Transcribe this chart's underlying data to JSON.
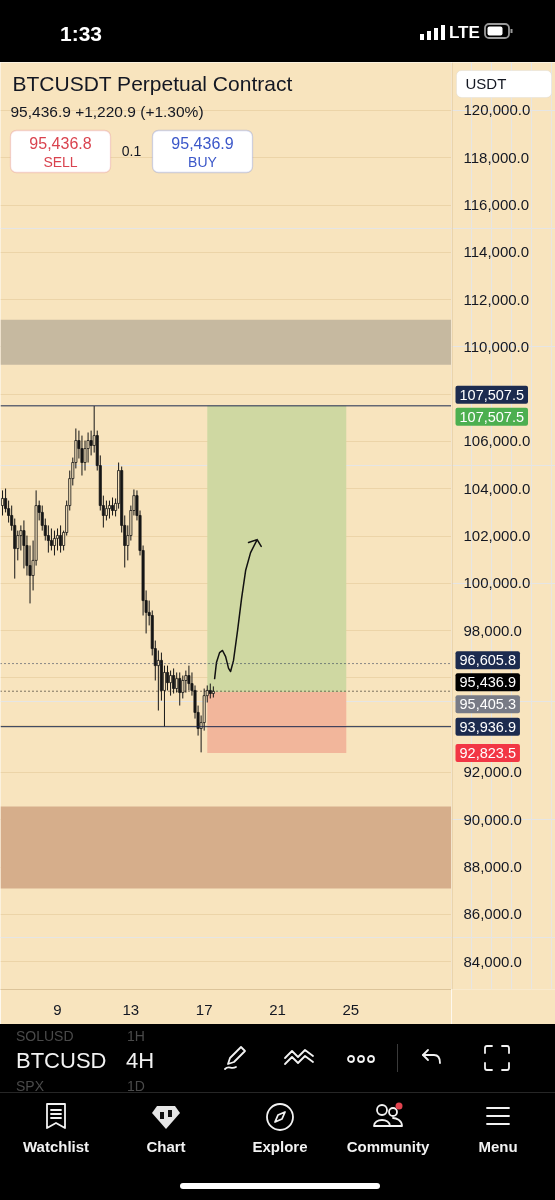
{
  "chart_data": {
    "type": "candlestick",
    "title": "BTCUSDT Perpetual Contract",
    "subtitle": "95,436.9 +1,220.9 (+1.30%)",
    "x": [
      6.0,
      6.167,
      6.333,
      6.5,
      6.667,
      6.833,
      7.0,
      7.167,
      7.333,
      7.5,
      7.667,
      7.833,
      8.0,
      8.167,
      8.333,
      8.5,
      8.667,
      8.833,
      9.0,
      9.167,
      9.333,
      9.5,
      9.667,
      9.833,
      10.0,
      10.167,
      10.333,
      10.5,
      10.667,
      10.833,
      11.0,
      11.167,
      11.333,
      11.5,
      11.667,
      11.833,
      12.0,
      12.167,
      12.333,
      12.5,
      12.667,
      12.833,
      13.0,
      13.167,
      13.333,
      13.5,
      13.667,
      13.833,
      14.0,
      14.167,
      14.333,
      14.5,
      14.667,
      14.833,
      15.0,
      15.167,
      15.333,
      15.5,
      15.667,
      15.833,
      16.0,
      16.167,
      16.333,
      16.5,
      16.667,
      16.833,
      17.0,
      17.167,
      17.333,
      17.5
    ],
    "ohlc": [
      [
        103290,
        103930,
        102870,
        103590
      ],
      [
        103590,
        104010,
        103000,
        103160
      ],
      [
        103160,
        103500,
        102570,
        102870
      ],
      [
        102870,
        103290,
        102230,
        102450
      ],
      [
        102450,
        102740,
        100200,
        101470
      ],
      [
        101470,
        102230,
        100970,
        102020
      ],
      [
        102020,
        102450,
        101390,
        102230
      ],
      [
        102230,
        102660,
        100630,
        101600
      ],
      [
        101600,
        102020,
        100330,
        100750
      ],
      [
        100750,
        101600,
        99150,
        100330
      ],
      [
        100330,
        101810,
        99700,
        100970
      ],
      [
        100970,
        103930,
        100750,
        103290
      ],
      [
        103290,
        103500,
        102660,
        103000
      ],
      [
        103000,
        103290,
        102230,
        102450
      ],
      [
        102450,
        102740,
        101810,
        102020
      ],
      [
        102020,
        102450,
        101300,
        101810
      ],
      [
        101810,
        102320,
        101390,
        101600
      ],
      [
        101600,
        102230,
        101180,
        101900
      ],
      [
        101900,
        102320,
        101390,
        102020
      ],
      [
        102020,
        102450,
        101300,
        101600
      ],
      [
        101600,
        102230,
        101390,
        102150
      ],
      [
        102150,
        103500,
        102020,
        103290
      ],
      [
        103290,
        104770,
        103080,
        104430
      ],
      [
        104430,
        105320,
        104140,
        105110
      ],
      [
        105110,
        106550,
        104860,
        106040
      ],
      [
        106040,
        106460,
        105280,
        105700
      ],
      [
        105700,
        106250,
        104560,
        105110
      ],
      [
        105110,
        106040,
        104770,
        105700
      ],
      [
        105700,
        106380,
        105110,
        106040
      ],
      [
        106040,
        106460,
        105410,
        105830
      ],
      [
        105830,
        107500,
        105530,
        106250
      ],
      [
        106250,
        106460,
        104770,
        104980
      ],
      [
        104980,
        105410,
        103080,
        103290
      ],
      [
        103290,
        103710,
        102360,
        102870
      ],
      [
        102870,
        103500,
        102660,
        103160
      ],
      [
        103160,
        103500,
        102740,
        103290
      ],
      [
        103290,
        103630,
        102870,
        103080
      ],
      [
        103080,
        103590,
        102830,
        103380
      ],
      [
        103380,
        105110,
        103160,
        104770
      ],
      [
        104770,
        104940,
        102150,
        102450
      ],
      [
        102450,
        102870,
        100670,
        101600
      ],
      [
        101600,
        102450,
        100970,
        102020
      ],
      [
        102020,
        103290,
        101810,
        103080
      ],
      [
        103080,
        103970,
        102870,
        103710
      ],
      [
        103710,
        103930,
        102660,
        102870
      ],
      [
        102870,
        103080,
        101180,
        101390
      ],
      [
        101390,
        101600,
        98640,
        99270
      ],
      [
        99270,
        99700,
        97880,
        98770
      ],
      [
        98770,
        99270,
        98220,
        98640
      ],
      [
        98640,
        98850,
        96950,
        97240
      ],
      [
        97240,
        97580,
        95890,
        96520
      ],
      [
        96520,
        97160,
        94620,
        96740
      ],
      [
        96740,
        97070,
        95040,
        95470
      ],
      [
        95470,
        96520,
        93940,
        96230
      ],
      [
        96230,
        96520,
        95470,
        95800
      ],
      [
        95800,
        96310,
        95250,
        96100
      ],
      [
        96100,
        96400,
        95340,
        95550
      ],
      [
        95550,
        96230,
        95380,
        95970
      ],
      [
        95970,
        96230,
        94830,
        95380
      ],
      [
        95380,
        96100,
        95130,
        95890
      ],
      [
        95890,
        96310,
        95380,
        96100
      ],
      [
        96100,
        96520,
        95470,
        95760
      ],
      [
        95760,
        96230,
        95250,
        95470
      ],
      [
        95470,
        95680,
        94280,
        94540
      ],
      [
        94540,
        94830,
        93560,
        93860
      ],
      [
        93860,
        94410,
        92850,
        94110
      ],
      [
        94110,
        95550,
        93770,
        95250
      ],
      [
        95250,
        95680,
        94960,
        95470
      ],
      [
        95470,
        95760,
        95130,
        95340
      ],
      [
        95340,
        95640,
        95170,
        95436.9
      ]
    ],
    "color": "#161616",
    "series": [
      {
        "type": "bar",
        "x": [
          20.96
        ],
        "base": [
          95405.3
        ],
        "values": [
          12102.2
        ],
        "color": "#cfd8a2"
      },
      {
        "type": "bar",
        "x": [
          20.96
        ],
        "base": [
          92823.5
        ],
        "values": [
          2581.8
        ],
        "color": "#f2b69b"
      },
      {
        "type": "line",
        "x": [
          17.57,
          17.67,
          17.84,
          18.0,
          18.17,
          18.33,
          18.44,
          18.6,
          18.82,
          19.04,
          19.26,
          19.53,
          19.89,
          19.42,
          19.89,
          20.11
        ],
        "values": [
          95970,
          96650,
          97070,
          97160,
          96900,
          96400,
          96270,
          96740,
          98000,
          99360,
          100540,
          101300,
          101850,
          101730,
          101850,
          101560
        ],
        "color": "#111111"
      }
    ],
    "xlim": [
      5.89,
      30.49
    ],
    "ylim": [
      82820,
      122030
    ],
    "xticks": [
      9,
      13,
      17,
      21,
      25
    ],
    "yticks": [
      {
        "value": 84000,
        "label": "84,000.0"
      },
      {
        "value": 86000,
        "label": "86,000.0"
      },
      {
        "value": 88000,
        "label": "88,000.0"
      },
      {
        "value": 90000,
        "label": "90,000.0"
      },
      {
        "value": 92000,
        "label": "92,000.0"
      },
      {
        "value": 94000,
        "label": null
      },
      {
        "value": 96000,
        "label": null
      },
      {
        "value": 98000,
        "label": "98,000.0"
      },
      {
        "value": 100000,
        "label": "100,000.0"
      },
      {
        "value": 102000,
        "label": "102,000.0"
      },
      {
        "value": 104000,
        "label": "104,000.0"
      },
      {
        "value": 106000,
        "label": "106,000.0"
      },
      {
        "value": 108000,
        "label": null
      },
      {
        "value": 110000,
        "label": "110,000.0"
      },
      {
        "value": 112000,
        "label": "112,000.0"
      },
      {
        "value": 114000,
        "label": "114,000.0"
      },
      {
        "value": 116000,
        "label": "116,000.0"
      },
      {
        "value": 118000,
        "label": "118,000.0"
      },
      {
        "value": 120000,
        "label": "120,000.0"
      }
    ],
    "grid": "y",
    "bands": [
      {
        "axis": "y",
        "from": 109250,
        "to": 111150,
        "color": "#c6b9a0"
      },
      {
        "axis": "y",
        "from": 87090,
        "to": 90560,
        "color": "#d6ae8b"
      }
    ],
    "ref_lines": [
      {
        "axis": "y",
        "value": 107507.5,
        "label": "107,507.5",
        "color": "#1c2b4f"
      },
      {
        "axis": "y",
        "value": 96605.8,
        "label": "96,605.8",
        "color": "#1c2b4f",
        "line_style": "dotted"
      },
      {
        "axis": "y",
        "value": 95436.9,
        "label": "95,436.9",
        "color": "#000000",
        "line_style": "dotted"
      },
      {
        "axis": "y",
        "value": 93936.9,
        "label": "93,936.9",
        "color": "#1c2b4f"
      }
    ],
    "annotations": [
      "USDT",
      "95,436.8",
      "SELL",
      "0.1",
      "95,436.9",
      "BUY",
      "1:33",
      "LTE",
      "SOLUSD",
      "1H",
      "BTCUSD",
      "4H",
      "SPX",
      "1D",
      "Watchlist",
      "Chart",
      "Explore",
      "Community",
      "Menu",
      "107,507.5",
      "95,405.3",
      "92,823.5"
    ]
  }
}
